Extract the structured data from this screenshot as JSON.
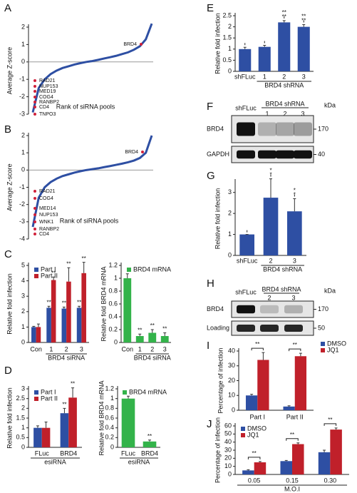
{
  "chart_data": [
    {
      "type": "line",
      "panel": "A",
      "ylabel": "Average Z-score",
      "xlabel": "Rank of siRNA pools",
      "color": "#2e4fa3",
      "values": [
        -2.9,
        -1.5,
        -1.0,
        -0.7,
        -0.5,
        -0.35,
        -0.25,
        -0.15,
        -0.07,
        0,
        0.05,
        0.12,
        0.2,
        0.27,
        0.35,
        0.45,
        0.55,
        0.7,
        0.9,
        1.3,
        2.2
      ],
      "ylim": [
        -3,
        2
      ],
      "yticks": [
        -3,
        -2,
        -1,
        0,
        1,
        2
      ],
      "annotations": [
        "BRD4",
        "RAD21",
        "NUP153",
        "MED19",
        "COG4",
        "RANBP2",
        "CD4",
        "TNPO3"
      ]
    },
    {
      "type": "line",
      "panel": "B",
      "ylabel": "Average Z-score",
      "xlabel": "Rank of siRNA pools",
      "color": "#2e4fa3",
      "values": [
        -3.3,
        -1.6,
        -1.0,
        -0.7,
        -0.5,
        -0.35,
        -0.25,
        -0.15,
        -0.07,
        0,
        0.05,
        0.1,
        0.17,
        0.23,
        0.3,
        0.37,
        0.45,
        0.55,
        0.7,
        1.0,
        2.0
      ],
      "ylim": [
        -4,
        2
      ],
      "yticks": [
        -4,
        -3,
        -2,
        -1,
        0,
        1,
        2
      ],
      "annotations": [
        "BRD4",
        "RAD21",
        "COG4",
        "MED14",
        "NUP153",
        "WNK1",
        "RANBP2",
        "CD4"
      ]
    },
    {
      "type": "bar",
      "panel": "C",
      "ylabel": "Relative fold infection",
      "xlabel": "BRD4 siRNA",
      "categories": [
        "Con",
        "1",
        "2",
        "3"
      ],
      "ylim": [
        0,
        5
      ],
      "yticks": [
        0,
        1,
        2,
        3,
        4,
        5
      ],
      "series": [
        {
          "name": "Part I",
          "color": "#2e4fa3",
          "values": [
            1,
            2.25,
            2.2,
            2.25
          ],
          "errors": [
            0.05,
            0.1,
            0.1,
            0.1
          ],
          "significance": [
            null,
            "**",
            "**",
            "**"
          ]
        },
        {
          "name": "Part II",
          "color": "#c0202a",
          "values": [
            1,
            4.05,
            3.95,
            4.5
          ],
          "errors": [
            0.2,
            0.2,
            0.9,
            0.7
          ],
          "significance": [
            null,
            "**",
            "**",
            "**"
          ]
        }
      ]
    },
    {
      "type": "bar",
      "ylabel": "Relative fold BRD4 mRNA",
      "xlabel": "BRD4 siRNA",
      "categories": [
        "Con",
        "1",
        "2",
        "3"
      ],
      "ylim": [
        0,
        1.2
      ],
      "yticks": [
        0,
        0.2,
        0.4,
        0.6,
        0.8,
        1,
        1.2
      ],
      "series": [
        {
          "name": "BRD4 mRNA",
          "color": "#33b34a",
          "values": [
            1,
            0.1,
            0.15,
            0.1
          ],
          "errors": [
            0.07,
            0.03,
            0.05,
            0.05
          ],
          "significance": [
            null,
            "**",
            "**",
            "**"
          ]
        }
      ]
    },
    {
      "type": "bar",
      "panel": "D",
      "ylabel": "Relative fold infection",
      "xlabel": "esiRNA",
      "categories": [
        "FLuc",
        "BRD4"
      ],
      "ylim": [
        0,
        3
      ],
      "yticks": [
        0,
        0.5,
        1,
        1.5,
        2,
        2.5,
        3
      ],
      "series": [
        {
          "name": "Part I",
          "color": "#2e4fa3",
          "values": [
            1,
            1.75
          ],
          "errors": [
            0.1,
            0.25
          ],
          "significance": [
            null,
            "**"
          ]
        },
        {
          "name": "Part II",
          "color": "#c0202a",
          "values": [
            1,
            2.55
          ],
          "errors": [
            0.3,
            0.5
          ],
          "significance": [
            null,
            "**"
          ]
        }
      ]
    },
    {
      "type": "bar",
      "ylabel": "Relative fold BRD4 mRNA",
      "xlabel": "esiRNA",
      "categories": [
        "FLuc",
        "BRD4"
      ],
      "ylim": [
        0,
        1.2
      ],
      "yticks": [
        0,
        0.2,
        0.4,
        0.6,
        0.8,
        1,
        1.2
      ],
      "series": [
        {
          "name": "BRD4 mRNA",
          "color": "#33b34a",
          "values": [
            1,
            0.12
          ],
          "errors": [
            0.05,
            0.03
          ],
          "significance": [
            null,
            "**"
          ]
        }
      ]
    },
    {
      "type": "bar",
      "panel": "E",
      "ylabel": "Relative fold infection",
      "xlabel": "BRD4 shRNA",
      "color": "#2e4fa3",
      "categories": [
        "shFLuc",
        "1",
        "2",
        "3"
      ],
      "values": [
        1,
        1.1,
        2.2,
        2.0
      ],
      "errors": [
        0.08,
        0.07,
        0.08,
        0.1
      ],
      "significance": [
        null,
        null,
        "**",
        "**"
      ],
      "ylim": [
        0,
        2.5
      ],
      "yticks": [
        0,
        0.5,
        1,
        1.5,
        2,
        2.5
      ]
    },
    {
      "type": "bar",
      "panel": "G",
      "ylabel": "Relative fold infection",
      "xlabel": "BRD4 shRNA",
      "color": "#2e4fa3",
      "categories": [
        "shFLuc",
        "2",
        "3"
      ],
      "values": [
        1,
        2.75,
        2.1
      ],
      "errors": [
        0,
        0.9,
        0.6
      ],
      "significance": [
        null,
        "*",
        "*"
      ],
      "ylim": [
        0,
        3.5
      ],
      "yticks": [
        0,
        1,
        2,
        3
      ]
    },
    {
      "type": "bar",
      "panel": "I",
      "ylabel": "Percentage of infection",
      "categories": [
        "Part I",
        "Part II"
      ],
      "ylim": [
        0,
        40
      ],
      "yticks": [
        0,
        10,
        20,
        30,
        40
      ],
      "significance": [
        "**",
        "**"
      ],
      "series": [
        {
          "name": "DMSO",
          "color": "#2e4fa3",
          "values": [
            10,
            2.5
          ],
          "errors": [
            0.8,
            0.5
          ]
        },
        {
          "name": "JQ1",
          "color": "#c0202a",
          "values": [
            34,
            36.5
          ],
          "errors": [
            5,
            2
          ]
        }
      ]
    },
    {
      "type": "bar",
      "panel": "J",
      "ylabel": "Percentage of infection",
      "xlabel": "M.O.I",
      "categories": [
        "0.05",
        "0.15",
        "0.30"
      ],
      "ylim": [
        0,
        60
      ],
      "yticks": [
        0,
        10,
        20,
        30,
        40,
        50,
        60
      ],
      "significance": [
        "**",
        "**",
        "**"
      ],
      "series": [
        {
          "name": "DMSO",
          "color": "#2e4fa3",
          "values": [
            5,
            16.5,
            27.5
          ],
          "errors": [
            0.8,
            0.8,
            2.5
          ]
        },
        {
          "name": "JQ1",
          "color": "#c0202a",
          "values": [
            15,
            37.5,
            55.5
          ],
          "errors": [
            1,
            1.5,
            2
          ]
        }
      ]
    }
  ],
  "blots": [
    {
      "panel": "F",
      "lanes": [
        "shFLuc",
        "1",
        "2",
        "3"
      ],
      "group_label": "BRD4 shRNA",
      "unit": "kDa",
      "rows": [
        {
          "label": "BRD4",
          "marker": 170
        },
        {
          "label": "GAPDH",
          "marker": 40
        }
      ]
    },
    {
      "panel": "H",
      "lanes": [
        "shFLuc",
        "2",
        "3"
      ],
      "group_label": "BRD4 shRNA",
      "unit": "kDa",
      "rows": [
        {
          "label": "BRD4",
          "marker": 170
        },
        {
          "label": "Loading",
          "marker": 50
        }
      ]
    }
  ]
}
